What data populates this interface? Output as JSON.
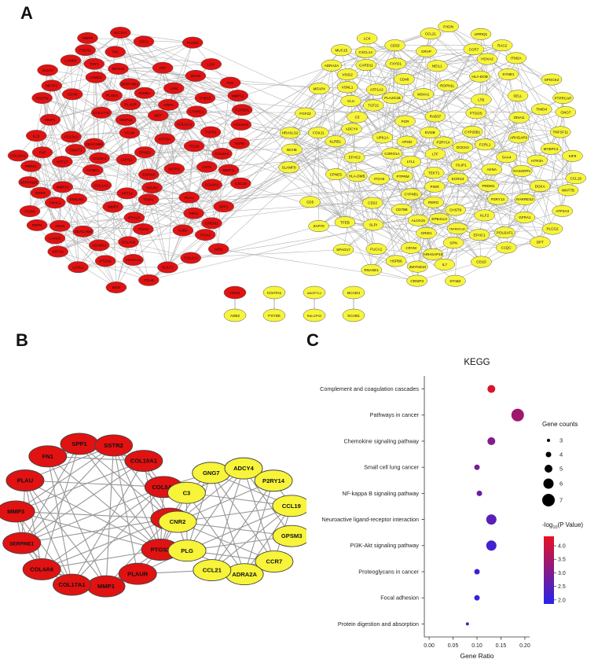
{
  "figure": {
    "panel_a_label": "A",
    "panel_b_label": "B",
    "panel_c_label": "C"
  },
  "network_a": {
    "red_color": "#e11212",
    "yellow_color": "#f7f43a",
    "edge_color": "#9b9b9b",
    "red_nodes": [
      "SPP1",
      "FN1",
      "SSTR2",
      "COL1A1",
      "COL1A2",
      "COL3A1",
      "COL4A1",
      "COL4A6",
      "COL5A1",
      "COL5A2",
      "COL10A1",
      "COL11A1",
      "COL17A1",
      "MMP1",
      "MMP3",
      "MMP9",
      "MMP10",
      "MMP11",
      "MMP12",
      "MMP13",
      "PLAU",
      "PLAUR",
      "SERPINE1",
      "SERPINB5",
      "CCND1",
      "PTGS2",
      "TNC",
      "POSTN",
      "SULF1",
      "SULF2",
      "THBS2",
      "ITGA2",
      "ITGA3",
      "ITGA5",
      "ITGA6",
      "ITGB4",
      "LAMA3",
      "LAMB3",
      "LAMC2",
      "KRT6A",
      "KRT14",
      "KRT16",
      "KRT17",
      "CDH3",
      "CEACAM5",
      "CEACAM6",
      "SDC1",
      "TGFBI",
      "SPARC",
      "FAP",
      "INHBA",
      "CTHRC1",
      "LOXL2",
      "ADAM12",
      "GREM1",
      "CST1",
      "CXCL8",
      "IL11",
      "TNFRSF12A",
      "PLOD2",
      "P4HA1",
      "FST",
      "MET",
      "MYO10",
      "ANLN",
      "AREG",
      "EREG",
      "EPHB2",
      "TGFB1",
      "VCAN",
      "FBN1",
      "LOX",
      "PDPN",
      "TIMP1",
      "CDH11",
      "FSCN1",
      "SLC2A1",
      "PLOD1",
      "COL8A1",
      "NID2",
      "EMILIN1",
      "MFAP2",
      "BGN",
      "LUM",
      "THY1",
      "GJB2",
      "S100A2",
      "PTHLH",
      "FGFBP1",
      "SNAI2",
      "TWIST1",
      "PRRX1"
    ],
    "yellow_nodes": [
      "ZMYND10",
      "EFHC2",
      "TEKT1",
      "EFHC1",
      "CRISP3",
      "ROPN1L",
      "DNAI1",
      "LRRIQ1",
      "CCL21",
      "C1QC",
      "CORO1A",
      "SPAG17",
      "SELL",
      "PXDN",
      "LYL1",
      "CYP4B1",
      "KIF9",
      "NEIL1",
      "HOXA2",
      "FOXJ1",
      "TCF21",
      "GRID1",
      "SAA4",
      "FILIP1",
      "IL7",
      "APOD",
      "PIGR",
      "MUC15",
      "HLA-DMB",
      "HLA-DOB",
      "LTF",
      "SLAMF8",
      "DOCK2",
      "SPN",
      "RARRES3",
      "ALOX15",
      "CD1D",
      "TFEB",
      "ATP1A2",
      "CCL19",
      "CLU",
      "PTGDS",
      "MFAP4",
      "PRDM1",
      "LCK",
      "WNT7B",
      "ITGA8",
      "DPT",
      "FGF23",
      "SLPI",
      "CXCL14",
      "CCR7",
      "ADRA2A",
      "C3",
      "CPNE5",
      "CD22",
      "LTB",
      "HTR3A",
      "ITM2A",
      "PTPRCAP",
      "FXYD1",
      "RAC2",
      "ARHGAP9",
      "TNFSF11",
      "CD53",
      "CD48",
      "GFRA1",
      "GNG7",
      "FUCA1",
      "P2RY14",
      "KLRB1",
      "VSNL1",
      "MS4A1",
      "CHST9",
      "ADCY4",
      "CARD11",
      "SYNE1",
      "GRAP",
      "EVI2B",
      "CD5",
      "ARHGAP15",
      "DGKA",
      "BCHE",
      "AKNA",
      "FGR",
      "PLCG2",
      "KLF2",
      "TIMD4",
      "FCRL1",
      "ATP2A3",
      "RAB37",
      "ZAP70",
      "POU2AF1",
      "RASGRP1",
      "PTPRM",
      "UPK1A",
      "HSPB6",
      "MYBPC1",
      "ECRG4",
      "CYP26B1",
      "SPOCK2",
      "CRYM",
      "RERG",
      "CD79B",
      "PLA2G1B",
      "TNFRSF13C",
      "HRASLS2",
      "RNASE1",
      "VSIG2",
      "P2RY13",
      "STAB2",
      "EPB41L3"
    ],
    "isolated_pairs": [
      {
        "top": {
          "label": "CDO1",
          "color": "red"
        },
        "bottom": {
          "label": "ASB2",
          "color": "yellow"
        }
      },
      {
        "top": {
          "label": "COATA1",
          "color": "yellow"
        },
        "bottom": {
          "label": "FXYD5",
          "color": "yellow"
        }
      },
      {
        "top": {
          "label": "ANGPTL1",
          "color": "yellow"
        },
        "bottom": {
          "label": "RALGPS2",
          "color": "yellow"
        }
      },
      {
        "top": {
          "label": "BCAD4",
          "color": "yellow"
        },
        "bottom": {
          "label": "SCAB1",
          "color": "yellow"
        }
      }
    ]
  },
  "network_b": {
    "red_nodes": [
      "SPP1",
      "SSTR2",
      "COL10A1",
      "COL5A1",
      "CCND1",
      "PTGS2",
      "PLAUR",
      "MMP1",
      "COL17A1",
      "COL4A6",
      "SERPINE1",
      "MMP3",
      "PLAU",
      "FN1"
    ],
    "yellow_nodes": [
      "GNG7",
      "ADCY4",
      "P2RY14",
      "CCL19",
      "GPSM3",
      "CCR7",
      "ADRA2A",
      "CCL21",
      "PLG",
      "CNR2",
      "C3"
    ],
    "bridge_edges": [
      [
        "PTGS2",
        "C3"
      ],
      [
        "PTGS2",
        "CNR2"
      ],
      [
        "PLAUR",
        "PLG"
      ],
      [
        "CCND1",
        "C3"
      ],
      [
        "COL5A1",
        "GNG7"
      ],
      [
        "PLAUR",
        "CCL21"
      ],
      [
        "CCND1",
        "CNR2"
      ],
      [
        "PTGS2",
        "PLG"
      ]
    ]
  },
  "chart_data": {
    "type": "scatter",
    "title": "KEGG",
    "xlabel": "Gene Ratio",
    "xlim": [
      -0.01,
      0.21
    ],
    "xticks": [
      0,
      0.05,
      0.1,
      0.15,
      0.2
    ],
    "xtick_labels": [
      "0.00",
      "0.05",
      "0.10",
      "0.15",
      "0.20"
    ],
    "categories": [
      "Complement and coagulation cascades",
      "Pathways in cancer",
      "Chemokine signaling pathway",
      "Small cell lung cancer",
      "NF-kappa B signaling pathway",
      "Neuroactive ligand-receptor interaction",
      "PI3K-Akt signaling pathway",
      "Proteoglycans in cancer",
      "Focal adhesion",
      "Protein digestion and absorption"
    ],
    "gene_ratio": [
      0.13,
      0.185,
      0.13,
      0.1,
      0.105,
      0.13,
      0.13,
      0.1,
      0.1,
      0.08
    ],
    "gene_count": [
      5,
      7,
      5,
      4,
      4,
      6,
      6,
      4,
      4,
      3
    ],
    "neg_log10_p": [
      4.2,
      3.4,
      3.05,
      2.9,
      2.8,
      2.5,
      2.2,
      2.1,
      2.0,
      2.35
    ],
    "legend_counts_title": "Gene counts",
    "legend_counts": [
      3,
      4,
      5,
      6,
      7
    ],
    "color_legend_title_parts": {
      "prefix": "-log",
      "sub": "10",
      "suffix": "(P Value)"
    },
    "color_ticks": [
      4.0,
      3.5,
      3.0,
      2.5,
      2.0
    ],
    "color_scale": {
      "high_value": 4.35,
      "low_value": 1.85,
      "high_color": "#e81222",
      "low_color": "#2823eb"
    },
    "legend_position": "right",
    "grid": false
  }
}
